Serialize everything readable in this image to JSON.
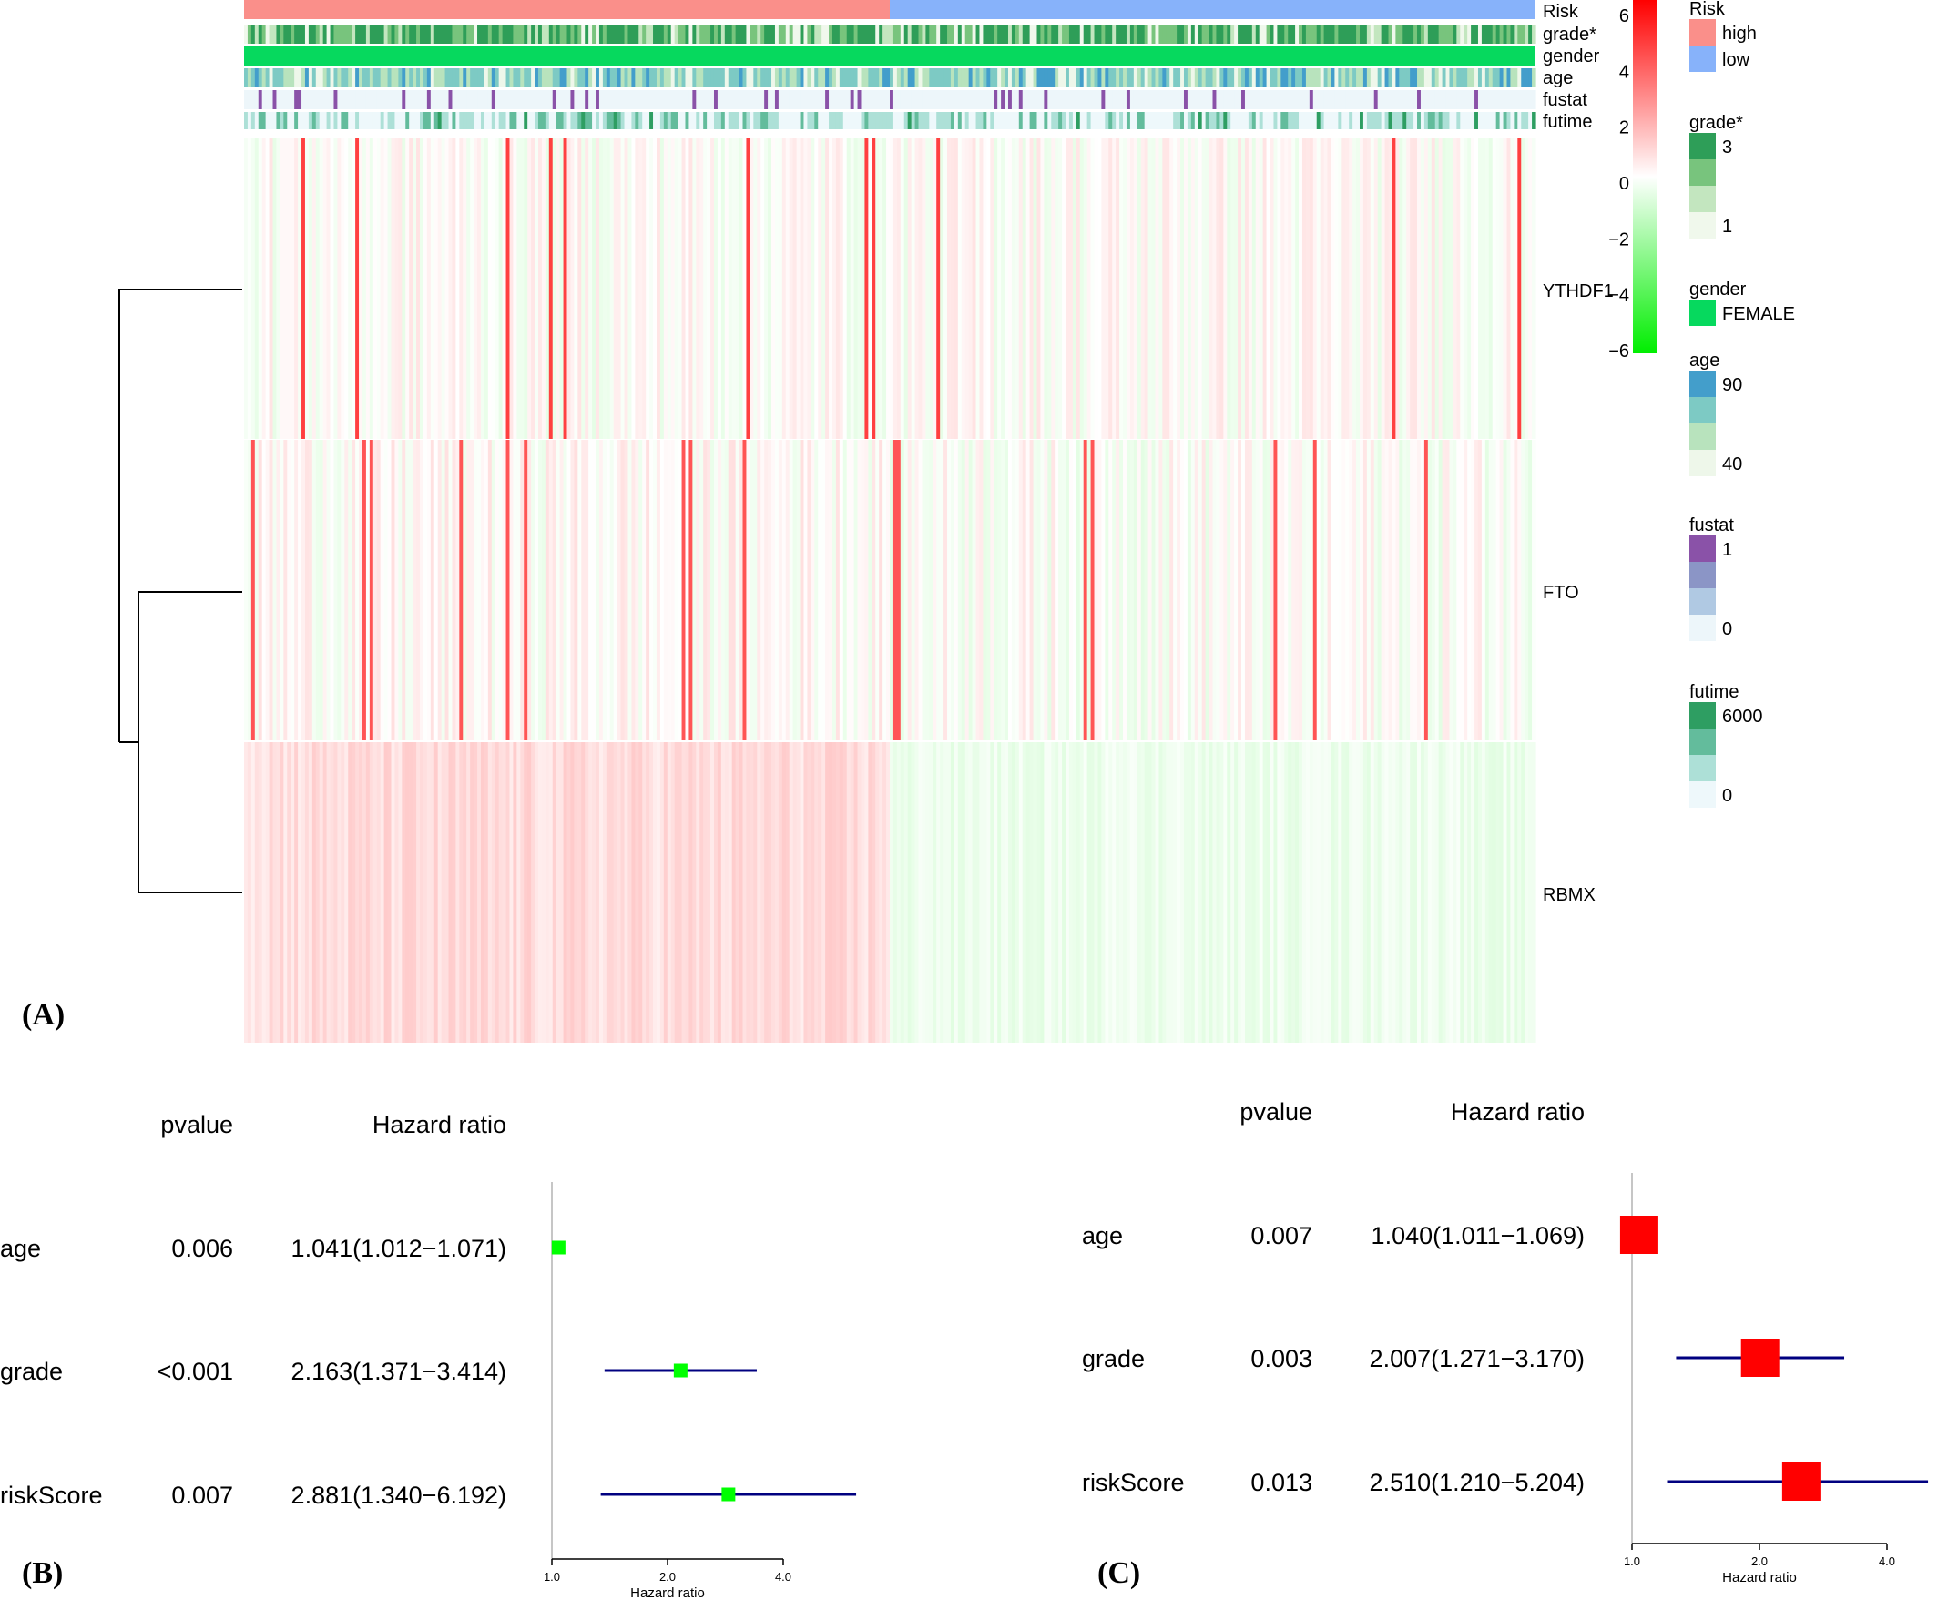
{
  "panels": [
    {
      "label": "(A)"
    },
    {
      "label": "(B)"
    },
    {
      "label": "(C)"
    }
  ],
  "chart_data": [
    {
      "type": "heatmap",
      "panel": "(A)",
      "rows": [
        "YTHDF1",
        "FTO",
        "RBMX"
      ],
      "dendrogram": {
        "merges": [
          [
            "FTO",
            "RBMX"
          ],
          [
            "YTHDF1",
            "FTO+RBMX"
          ]
        ]
      },
      "annotation_tracks": [
        "Risk",
        "grade*",
        "gender",
        "age",
        "fustat",
        "futime"
      ],
      "color_scale": {
        "min": -6,
        "max": 6,
        "ticks": [
          6,
          4,
          2,
          0,
          -2,
          -4,
          -6
        ],
        "low_color": "#00ee00",
        "mid_color": "#ffffff",
        "high_color": "#ff0000"
      },
      "groups": [
        {
          "name": "high",
          "color": "#fa8f8a",
          "fraction": 0.5
        },
        {
          "name": "low",
          "color": "#87b2fa",
          "fraction": 0.5
        }
      ],
      "legends": [
        {
          "title": "Risk",
          "items": [
            {
              "label": "high",
              "color": "#fa8f8a"
            },
            {
              "label": "low",
              "color": "#87b2fa"
            }
          ]
        },
        {
          "title": "grade*",
          "scale": {
            "max_label": "3",
            "min_label": "1",
            "colors": [
              "#2e9e58",
              "#78c47d",
              "#c3e6bf",
              "#f0f8ec"
            ]
          }
        },
        {
          "title": "gender",
          "items": [
            {
              "label": "FEMALE",
              "color": "#06d95e"
            }
          ]
        },
        {
          "title": "age",
          "scale": {
            "max_label": "90",
            "min_label": "40",
            "colors": [
              "#439ecb",
              "#7dcac4",
              "#b8e3bd",
              "#eef7ea"
            ]
          }
        },
        {
          "title": "fustat",
          "scale": {
            "max_label": "1",
            "min_label": "0",
            "colors": [
              "#8a52a8",
              "#8b95c6",
              "#b0c9e3",
              "#edf6fa"
            ]
          }
        },
        {
          "title": "futime",
          "scale": {
            "max_label": "6000",
            "min_label": "0",
            "colors": [
              "#2e9e62",
              "#63bc9c",
              "#ade0d7",
              "#eef8fb"
            ]
          }
        }
      ]
    },
    {
      "type": "forest",
      "panel": "(B)",
      "headers": {
        "pvalue": "pvalue",
        "hr": "Hazard ratio"
      },
      "rows": [
        {
          "name": "age",
          "pvalue": "0.006",
          "hr_text": "1.041(1.012−1.071)",
          "hr": 1.041,
          "lo": 1.012,
          "hi": 1.071
        },
        {
          "name": "grade",
          "pvalue": "<0.001",
          "hr_text": "2.163(1.371−3.414)",
          "hr": 2.163,
          "lo": 1.371,
          "hi": 3.414
        },
        {
          "name": "riskScore",
          "pvalue": "0.007",
          "hr_text": "2.881(1.340−6.192)",
          "hr": 2.881,
          "lo": 1.34,
          "hi": 6.192
        }
      ],
      "xaxis": {
        "label": "Hazard ratio",
        "ticks": [
          "1.0",
          "2.0",
          "4.0"
        ],
        "scale": "log2",
        "range": [
          1,
          4
        ]
      },
      "marker_color": "#00ff00",
      "line_color": "#000080"
    },
    {
      "type": "forest",
      "panel": "(C)",
      "headers": {
        "pvalue": "pvalue",
        "hr": "Hazard ratio"
      },
      "rows": [
        {
          "name": "age",
          "pvalue": "0.007",
          "hr_text": "1.040(1.011−1.069)",
          "hr": 1.04,
          "lo": 1.011,
          "hi": 1.069
        },
        {
          "name": "grade",
          "pvalue": "0.003",
          "hr_text": "2.007(1.271−3.170)",
          "hr": 2.007,
          "lo": 1.271,
          "hi": 3.17
        },
        {
          "name": "riskScore",
          "pvalue": "0.013",
          "hr_text": "2.510(1.210−5.204)",
          "hr": 2.51,
          "lo": 1.21,
          "hi": 5.204
        }
      ],
      "xaxis": {
        "label": "Hazard ratio",
        "ticks": [
          "1.0",
          "2.0",
          "4.0"
        ],
        "scale": "log2",
        "range": [
          1,
          4
        ]
      },
      "marker_color": "#ff0000",
      "line_color": "#000080"
    }
  ]
}
